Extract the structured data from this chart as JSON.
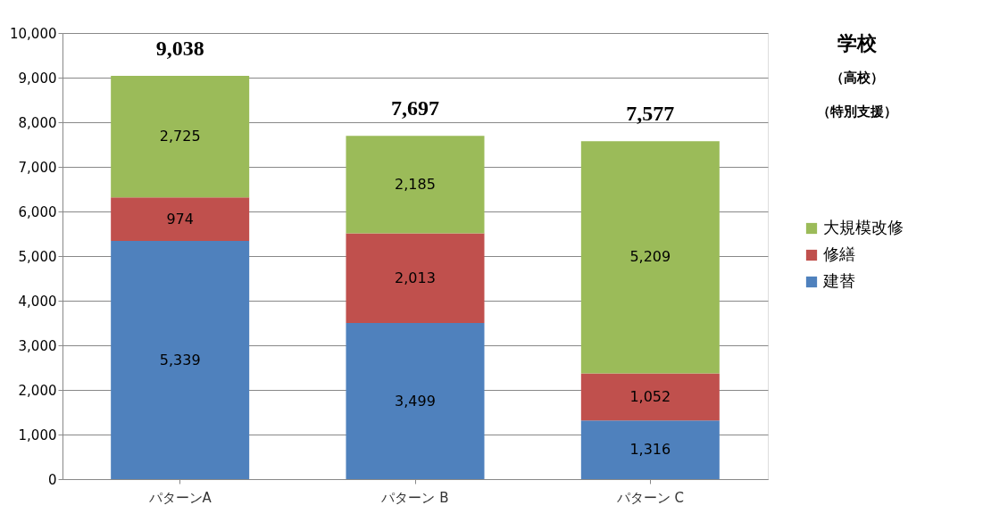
{
  "chart_data": {
    "type": "bar",
    "stacked": true,
    "categories": [
      "パターンA",
      "パターン B",
      "パターン C"
    ],
    "series": [
      {
        "name": "建替",
        "color": "#4f81bd",
        "values": [
          5339,
          3499,
          1316
        ],
        "value_labels": [
          "5,339",
          "3,499",
          "1,316"
        ]
      },
      {
        "name": "修繕",
        "color": "#c0504d",
        "values": [
          974,
          2013,
          1052
        ],
        "value_labels": [
          "974",
          "2,013",
          "1,052"
        ]
      },
      {
        "name": "大規模改修",
        "color": "#9bbb59",
        "values": [
          2725,
          2185,
          5209
        ],
        "value_labels": [
          "2,725",
          "2,185",
          "5,209"
        ]
      }
    ],
    "totals": [
      "9,038",
      "7,697",
      "7,577"
    ],
    "ylim": [
      0,
      10000
    ],
    "yticks": [
      {
        "value": 0,
        "label": "0"
      },
      {
        "value": 1000,
        "label": "1,000"
      },
      {
        "value": 2000,
        "label": "2,000"
      },
      {
        "value": 3000,
        "label": "3,000"
      },
      {
        "value": 4000,
        "label": "4,000"
      },
      {
        "value": 5000,
        "label": "5,000"
      },
      {
        "value": 6000,
        "label": "6,000"
      },
      {
        "value": 7000,
        "label": "7,000"
      },
      {
        "value": 8000,
        "label": "8,000"
      },
      {
        "value": 9000,
        "label": "9,000"
      },
      {
        "value": 10000,
        "label": "10,000"
      }
    ],
    "grid": "y",
    "legend": "right",
    "annotations": [
      "学校",
      "（高校）",
      "（特別支援）"
    ]
  }
}
